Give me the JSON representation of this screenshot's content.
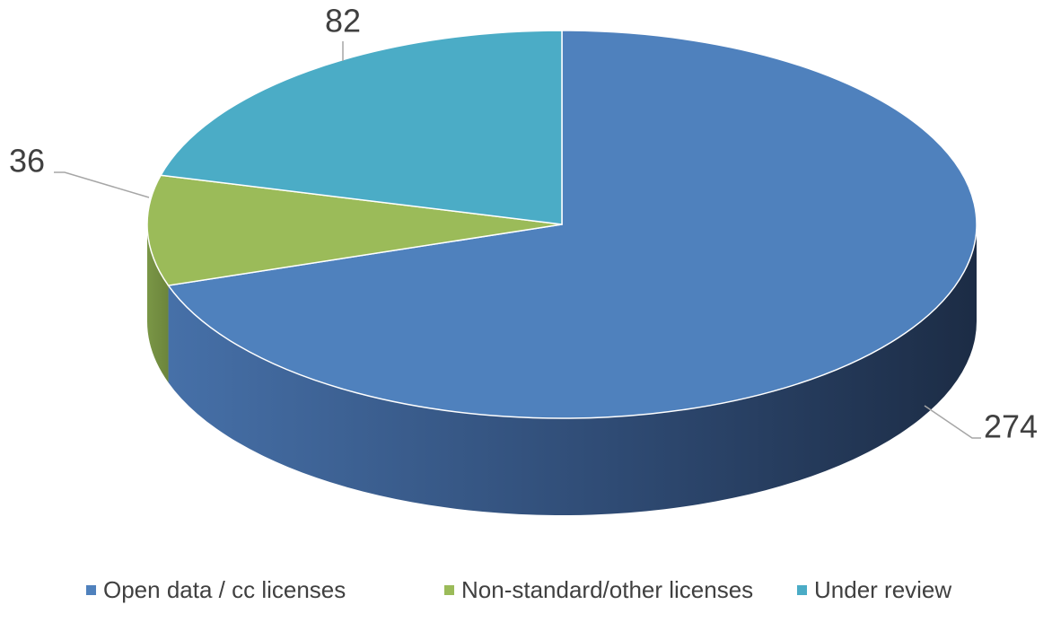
{
  "chart_data": {
    "type": "pie",
    "categories": [
      "Open data / cc licenses",
      "Non-standard/other licenses",
      "Under review"
    ],
    "values": [
      274,
      36,
      82
    ],
    "colors": [
      "#4f81bd",
      "#9bbb59",
      "#4bacc6"
    ],
    "legend": "bottom"
  }
}
